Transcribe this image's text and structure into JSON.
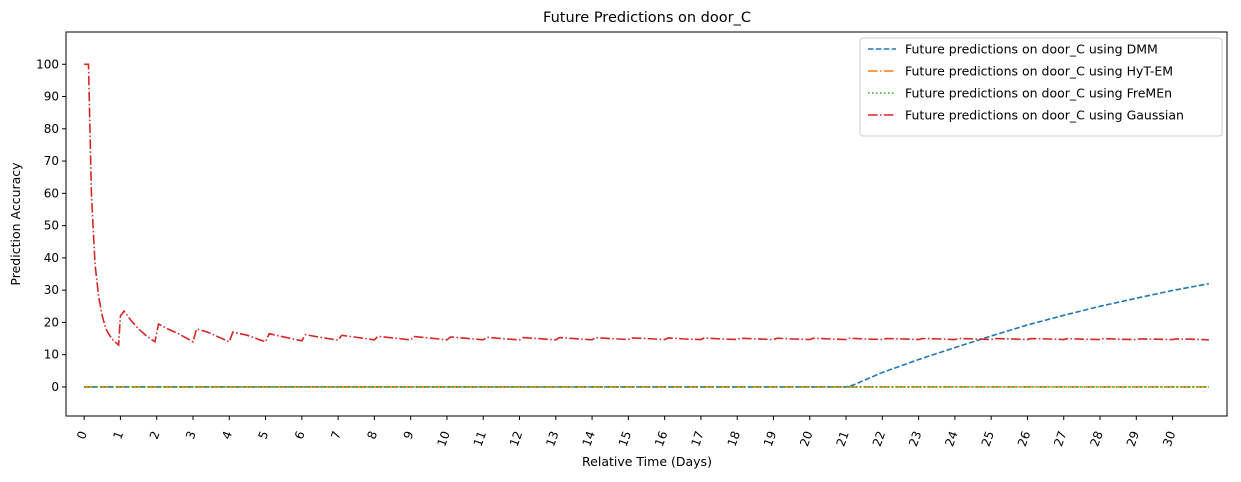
{
  "chart_data": {
    "type": "line",
    "title": "Future Predictions on door_C",
    "xlabel": "Relative Time (Days)",
    "ylabel": "Prediction Accuracy",
    "xlim": [
      -0.5,
      31.5
    ],
    "ylim": [
      -9,
      110
    ],
    "xticks": [
      0,
      1,
      2,
      3,
      4,
      5,
      6,
      7,
      8,
      9,
      10,
      11,
      12,
      13,
      14,
      15,
      16,
      17,
      18,
      19,
      20,
      21,
      22,
      23,
      24,
      25,
      26,
      27,
      28,
      29,
      30
    ],
    "yticks": [
      0,
      10,
      20,
      30,
      40,
      50,
      60,
      70,
      80,
      90,
      100
    ],
    "grid": false,
    "legend_position": "top-right",
    "series": [
      {
        "name": "Future predictions on door_C using DMM",
        "color": "#1f77b4",
        "dash": "dashed",
        "x": [
          0,
          21,
          21.2,
          22,
          23,
          24,
          25,
          26,
          27,
          28,
          29,
          30,
          31
        ],
        "y": [
          0,
          0,
          0.6,
          4.5,
          8.5,
          12.2,
          15.8,
          19.2,
          22.2,
          25.0,
          27.5,
          29.9,
          32.0
        ]
      },
      {
        "name": "Future predictions on door_C using HyT-EM",
        "color": "#ff7f0e",
        "dash": "dashdot",
        "x": [
          0,
          31
        ],
        "y": [
          0,
          0
        ]
      },
      {
        "name": "Future predictions on door_C using FreMEn",
        "color": "#2ca02c",
        "dash": "dotted",
        "x": [
          0,
          31
        ],
        "y": [
          0,
          0
        ]
      },
      {
        "name": "Future predictions on door_C using Gaussian",
        "color": "#d62728",
        "dash": "dashdot",
        "x": [
          0,
          0.12,
          0.2,
          0.3,
          0.4,
          0.5,
          0.6,
          0.7,
          0.8,
          0.95,
          1.0,
          1.1,
          1.3,
          1.5,
          1.7,
          1.95,
          2.05,
          2.3,
          2.6,
          3.0,
          3.1,
          3.4,
          3.7,
          4.0,
          4.1,
          4.5,
          5.0,
          5.1,
          5.5,
          6.0,
          6.1,
          6.5,
          7.0,
          7.1,
          7.5,
          8.0,
          8.1,
          8.5,
          9.0,
          9.1,
          9.5,
          10.0,
          10.1,
          10.5,
          11.0,
          11.1,
          11.5,
          12.0,
          12.1,
          12.5,
          13.0,
          13.1,
          13.5,
          14.0,
          14.1,
          14.5,
          15.0,
          15.1,
          15.5,
          16.0,
          16.1,
          16.5,
          17.0,
          17.1,
          17.5,
          18.0,
          18.1,
          18.5,
          19.0,
          19.1,
          19.5,
          20.0,
          20.1,
          20.5,
          21.0,
          21.1,
          21.5,
          22.0,
          22.1,
          22.5,
          23.0,
          23.1,
          23.5,
          24.0,
          24.1,
          24.5,
          25.0,
          25.1,
          25.5,
          26.0,
          26.1,
          26.5,
          27.0,
          27.1,
          27.5,
          28.0,
          28.1,
          28.5,
          29.0,
          29.1,
          29.5,
          30.0,
          30.1,
          30.5,
          31.0
        ],
        "y": [
          100,
          100,
          60,
          38,
          28,
          22,
          18,
          16,
          14.5,
          13,
          22,
          23.5,
          20.5,
          18,
          16,
          14,
          19.5,
          18,
          16.5,
          14,
          18,
          17,
          15.5,
          14,
          17,
          16,
          14,
          16.5,
          15.5,
          14.3,
          16.2,
          15.4,
          14.5,
          16,
          15.4,
          14.6,
          15.7,
          15.2,
          14.6,
          15.6,
          15.2,
          14.6,
          15.5,
          15.1,
          14.6,
          15.4,
          15.0,
          14.6,
          15.3,
          15.0,
          14.6,
          15.3,
          15.0,
          14.6,
          15.3,
          15.0,
          14.7,
          15.2,
          15.0,
          14.7,
          15.2,
          14.9,
          14.7,
          15.2,
          14.9,
          14.7,
          15.1,
          14.9,
          14.7,
          15.1,
          14.9,
          14.7,
          15.1,
          14.9,
          14.7,
          15.1,
          14.9,
          14.7,
          15.0,
          14.9,
          14.7,
          15.0,
          14.9,
          14.7,
          15.0,
          14.9,
          14.7,
          15.0,
          14.9,
          14.7,
          15.0,
          14.9,
          14.7,
          15.0,
          14.8,
          14.7,
          15.0,
          14.8,
          14.7,
          14.9,
          14.8,
          14.7,
          14.9,
          14.8,
          14.6
        ]
      }
    ]
  }
}
